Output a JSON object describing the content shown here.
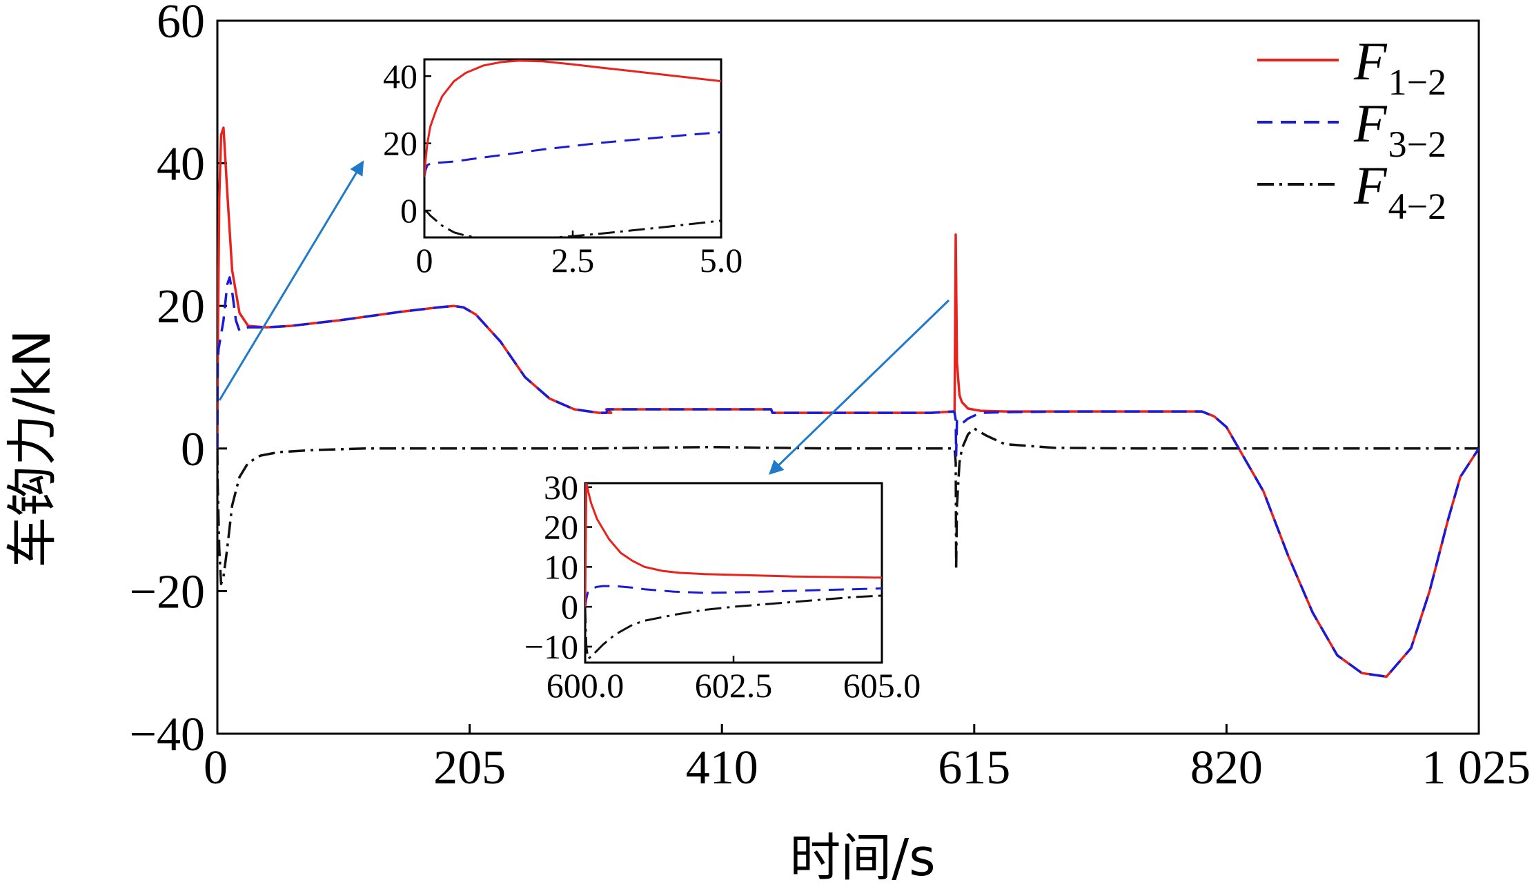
{
  "chart_data": {
    "type": "line",
    "xlabel": "时间/s",
    "ylabel": "车钩力/kN",
    "xlim": [
      0,
      1025
    ],
    "ylim": [
      -40,
      60
    ],
    "xticks": [
      0,
      205,
      410,
      615,
      820,
      1025
    ],
    "xtick_labels": [
      "0",
      "205",
      "410",
      "615",
      "820",
      "1 025"
    ],
    "yticks": [
      -40,
      -20,
      0,
      20,
      40,
      60
    ],
    "ytick_labels": [
      "−40",
      "−20",
      "0",
      "20",
      "40",
      "60"
    ],
    "legend_position": "top-right",
    "series": [
      {
        "name": "F1−2",
        "label_main": "F",
        "label_sub": "1−2",
        "color": "#e8221d",
        "dash": "solid",
        "x": [
          0,
          0.3,
          1.5,
          3,
          5,
          8,
          12,
          18,
          25,
          40,
          60,
          100,
          150,
          180,
          192,
          200,
          210,
          230,
          250,
          270,
          290,
          310,
          320,
          316,
          317,
          380,
          450,
          451,
          520,
          580,
          598,
          599,
          600,
          601,
          603,
          605,
          610,
          620,
          640,
          700,
          780,
          800,
          810,
          820,
          850,
          870,
          890,
          910,
          930,
          950,
          970,
          985,
          1000,
          1010,
          1025
        ],
        "y": [
          0,
          12,
          35,
          44,
          45,
          36,
          25,
          19,
          17.2,
          17,
          17.2,
          18,
          19.2,
          19.8,
          20,
          19.8,
          18.8,
          15,
          10,
          7,
          5.5,
          5,
          5,
          5.5,
          5.5,
          5.5,
          5.5,
          5,
          5,
          5,
          5.2,
          5,
          30,
          12,
          7.5,
          6.5,
          5.6,
          5.3,
          5.2,
          5.2,
          5.2,
          5.2,
          4.5,
          3,
          -6,
          -15,
          -23,
          -29,
          -31.5,
          -32,
          -28,
          -20,
          -10,
          -4,
          0
        ]
      },
      {
        "name": "F3−2",
        "label_main": "F",
        "label_sub": "3−2",
        "color": "#1b1bd6",
        "dash": "22 12",
        "x": [
          0,
          0.3,
          1,
          3,
          5,
          8,
          10,
          12,
          15,
          18,
          25,
          40,
          60,
          100,
          150,
          180,
          192,
          200,
          210,
          230,
          250,
          270,
          290,
          310,
          316,
          317,
          380,
          450,
          451,
          520,
          580,
          598,
          599,
          600,
          600.3,
          601,
          603,
          605,
          610,
          620,
          640,
          700,
          780,
          800,
          810,
          820,
          850,
          870,
          890,
          910,
          930,
          950,
          970,
          985,
          1000,
          1010,
          1025
        ],
        "y": [
          0,
          12,
          14,
          16,
          18,
          23,
          24,
          22,
          18,
          16.5,
          17,
          17,
          17.2,
          18,
          19.2,
          19.8,
          20,
          19.8,
          18.8,
          15,
          10,
          7,
          5.5,
          5,
          5,
          5.5,
          5.5,
          5.5,
          5,
          5,
          5,
          5.2,
          5,
          4,
          -1,
          4,
          4,
          3.5,
          4.2,
          5,
          5.1,
          5.2,
          5.2,
          5.2,
          4.5,
          3,
          -6,
          -15,
          -23,
          -29,
          -31.5,
          -32,
          -28,
          -20,
          -10,
          -4,
          0
        ]
      },
      {
        "name": "F4−2",
        "label_main": "F",
        "label_sub": "4−2",
        "color": "#111111",
        "dash": "24 8 4 8",
        "x": [
          0,
          0.3,
          1.5,
          3,
          5,
          8,
          12,
          18,
          25,
          35,
          50,
          80,
          120,
          200,
          300,
          400,
          500,
          598,
          599,
          600,
          600.3,
          601,
          603,
          605,
          610,
          615,
          625,
          640,
          680,
          750,
          850,
          950,
          1025
        ],
        "y": [
          0,
          -5,
          -14,
          -19,
          -18,
          -14,
          -8,
          -4,
          -2,
          -1,
          -0.5,
          -0.2,
          0,
          0,
          0,
          0.2,
          0,
          0,
          0,
          -2,
          -17,
          -8,
          -2,
          0,
          2,
          2.8,
          1.8,
          0.6,
          0.1,
          0,
          0,
          0,
          0
        ]
      }
    ],
    "insets": [
      {
        "xlim": [
          0,
          5
        ],
        "ylim": [
          -8,
          45
        ],
        "xticks": [
          0,
          2.5,
          5.0
        ],
        "xtick_labels": [
          "0",
          "2.5",
          "5.0"
        ],
        "yticks": [
          0,
          20,
          40
        ],
        "ytick_labels": [
          "0",
          "20",
          "40"
        ],
        "series": [
          {
            "name": "F1−2",
            "x": [
              0,
              0.02,
              0.05,
              0.1,
              0.2,
              0.3,
              0.5,
              0.7,
              1.0,
              1.3,
              1.6,
              2.0,
              2.5,
              3.0,
              3.5,
              4.0,
              4.5,
              5.0
            ],
            "y": [
              10,
              15,
              20,
              25,
              30,
              34,
              38.5,
              41,
              43.2,
              44.2,
              44.6,
              44.4,
              43.5,
              42.5,
              41.5,
              40.5,
              39.5,
              38.5
            ]
          },
          {
            "name": "F3−2",
            "x": [
              0,
              0.02,
              0.05,
              0.1,
              0.2,
              0.3,
              0.5,
              1.0,
              1.5,
              2.0,
              2.5,
              3.0,
              3.5,
              4.0,
              4.5,
              5.0
            ],
            "y": [
              10,
              12,
              13.5,
              14,
              14.2,
              14.3,
              14.6,
              15.8,
              17,
              18.2,
              19.2,
              20.2,
              21,
              21.8,
              22.6,
              23.3
            ]
          },
          {
            "name": "F4−2",
            "x": [
              0,
              0.05,
              0.1,
              0.2,
              0.3,
              0.5,
              0.7,
              1.0,
              1.3,
              1.6,
              2.0,
              2.5,
              3.0,
              3.5,
              4.0,
              4.5,
              5.0
            ],
            "y": [
              0,
              -0.5,
              -1.5,
              -3,
              -4.5,
              -6.5,
              -7.5,
              -8.3,
              -8.6,
              -8.6,
              -8.3,
              -7.6,
              -6.8,
              -5.9,
              -5,
              -4,
              -3
            ]
          }
        ]
      },
      {
        "xlim": [
          600,
          605
        ],
        "ylim": [
          -14,
          31
        ],
        "xticks": [
          600,
          602.5,
          605
        ],
        "xtick_labels": [
          "600.0",
          "602.5",
          "605.0"
        ],
        "yticks": [
          -10,
          0,
          10,
          20,
          30
        ],
        "ytick_labels": [
          "−10",
          "0",
          "10",
          "20",
          "30"
        ],
        "series": [
          {
            "name": "F1−2",
            "x": [
              600,
              600.02,
              600.05,
              600.1,
              600.2,
              600.4,
              600.6,
              600.8,
              601.0,
              601.3,
              601.6,
              602.0,
              602.5,
              603.0,
              603.5,
              604.0,
              604.5,
              605.0
            ],
            "y": [
              0,
              31,
              29,
              26,
              22,
              17,
              13.5,
              11.5,
              10,
              9,
              8.5,
              8.2,
              8.0,
              7.8,
              7.6,
              7.5,
              7.4,
              7.3
            ]
          },
          {
            "name": "F3−2",
            "x": [
              600,
              600.02,
              600.05,
              600.1,
              600.2,
              600.3,
              600.5,
              600.8,
              601.0,
              601.5,
              602.0,
              602.5,
              603.0,
              603.5,
              604.0,
              604.5,
              605.0
            ],
            "y": [
              0,
              2,
              4,
              4.5,
              5,
              5.2,
              5.2,
              4.8,
              4.4,
              3.8,
              3.5,
              3.6,
              3.8,
              4.0,
              4.2,
              4.4,
              4.6
            ]
          },
          {
            "name": "F4−2",
            "x": [
              600,
              600.02,
              600.05,
              600.1,
              600.2,
              600.3,
              600.5,
              600.8,
              601.0,
              601.5,
              602.0,
              602.5,
              603.0,
              603.5,
              604.0,
              604.5,
              605.0
            ],
            "y": [
              0,
              -10,
              -13,
              -12.5,
              -11,
              -9.5,
              -7,
              -4.5,
              -3.5,
              -2,
              -0.8,
              0,
              0.6,
              1.2,
              1.8,
              2.4,
              2.8
            ]
          }
        ]
      }
    ],
    "annotation_arrows_color": "#1f7ac9"
  }
}
